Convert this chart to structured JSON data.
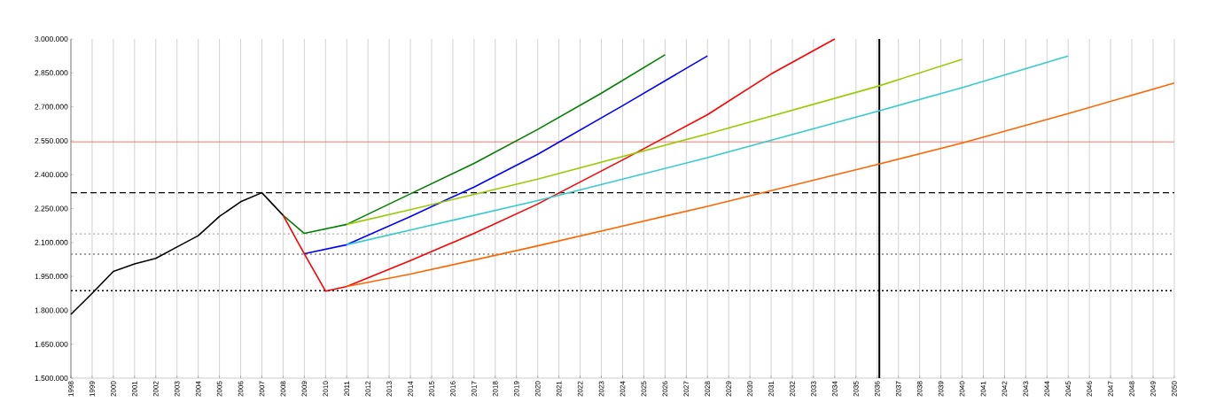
{
  "chart_data": {
    "type": "line",
    "xlim": [
      1998,
      2050
    ],
    "ylim": [
      1500000,
      3000000
    ],
    "xticks": [
      1998,
      1999,
      2000,
      2001,
      2002,
      2003,
      2004,
      2005,
      2006,
      2007,
      2008,
      2009,
      2010,
      2011,
      2012,
      2013,
      2014,
      2015,
      2016,
      2017,
      2018,
      2019,
      2020,
      2021,
      2022,
      2023,
      2024,
      2025,
      2026,
      2027,
      2028,
      2029,
      2030,
      2031,
      2032,
      2033,
      2034,
      2035,
      2036,
      2037,
      2038,
      2039,
      2040,
      2041,
      2042,
      2043,
      2044,
      2045,
      2046,
      2047,
      2048,
      2049,
      2050
    ],
    "yticks": [
      {
        "value": 1500000,
        "label": "1.500.000"
      },
      {
        "value": 1650000,
        "label": "1.650.000"
      },
      {
        "value": 1800000,
        "label": "1.800.000"
      },
      {
        "value": 1950000,
        "label": "1.950.000"
      },
      {
        "value": 2100000,
        "label": "2.100.000"
      },
      {
        "value": 2250000,
        "label": "2.250.000"
      },
      {
        "value": 2400000,
        "label": "2.400.000"
      },
      {
        "value": 2550000,
        "label": "2.550.000"
      },
      {
        "value": 2700000,
        "label": "2.700.000"
      },
      {
        "value": 2850000,
        "label": "2.850.000"
      },
      {
        "value": 3000000,
        "label": "3.000.000"
      }
    ],
    "grid": "x",
    "marker": "none",
    "line_style": "solid",
    "series": [
      {
        "color": "#008000",
        "x": [
          2008,
          2009,
          2011,
          2014,
          2017,
          2020,
          2023,
          2026
        ],
        "values": [
          2220000,
          2140000,
          2180000,
          2315000,
          2450000,
          2600000,
          2760000,
          2930000
        ]
      },
      {
        "color": "#0000ff",
        "x": [
          2009,
          2011,
          2014,
          2017,
          2020,
          2024,
          2028
        ],
        "values": [
          2050000,
          2090000,
          2215000,
          2345000,
          2490000,
          2705000,
          2925000
        ]
      },
      {
        "color": "#ff0000",
        "x": [
          2008,
          2009,
          2010,
          2011,
          2014,
          2017,
          2020,
          2024,
          2028,
          2031,
          2034
        ],
        "values": [
          2220000,
          2050000,
          1885000,
          1905000,
          2020000,
          2140000,
          2270000,
          2465000,
          2665000,
          2845000,
          3000000
        ]
      },
      {
        "color": "#99cc00",
        "x": [
          2011,
          2014,
          2020,
          2028,
          2036,
          2040
        ],
        "values": [
          2180000,
          2245000,
          2380000,
          2580000,
          2790000,
          2910000
        ]
      },
      {
        "color": "#33cccc",
        "x": [
          2011,
          2014,
          2020,
          2028,
          2036,
          2040,
          2045
        ],
        "values": [
          2090000,
          2155000,
          2285000,
          2475000,
          2680000,
          2785000,
          2925000
        ]
      },
      {
        "color": "#ff6600",
        "x": [
          2011,
          2014,
          2020,
          2028,
          2036,
          2040,
          2045,
          2050
        ],
        "values": [
          1905000,
          1960000,
          2085000,
          2260000,
          2445000,
          2540000,
          2670000,
          2805000
        ]
      },
      {
        "color": "#000000",
        "x": [
          1998,
          1999,
          2000,
          2001,
          2002,
          2003,
          2004,
          2005,
          2006,
          2007,
          2008
        ],
        "values": [
          1782000,
          1875000,
          1972000,
          2005000,
          2030000,
          2080000,
          2130000,
          2215000,
          2280000,
          2320000,
          2220000
        ]
      }
    ],
    "ref_lines": [
      {
        "axis": "y",
        "value": 2545000,
        "color": "#ff5050",
        "line_style": "solid"
      },
      {
        "axis": "y",
        "value": 2320000,
        "color": "#000000",
        "line_style": "dashed"
      },
      {
        "axis": "y",
        "value": 2138000,
        "color": "#b0b0b0",
        "line_style": "dotted"
      },
      {
        "axis": "y",
        "value": 2048000,
        "color": "#808080",
        "line_style": "dotted"
      },
      {
        "axis": "y",
        "value": 1887000,
        "color": "#000000",
        "line_style": "dotted"
      },
      {
        "axis": "x",
        "value": 2036.1,
        "color": "#000000",
        "line_style": "solid"
      }
    ]
  }
}
